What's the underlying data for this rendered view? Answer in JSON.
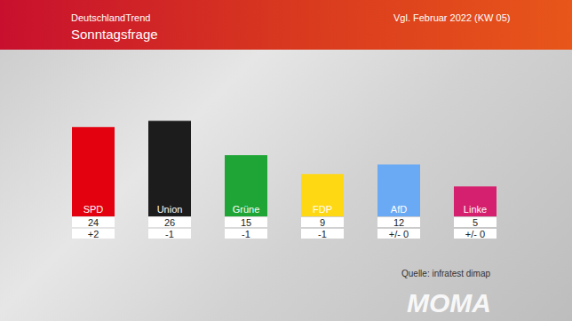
{
  "chart_data": {
    "type": "bar",
    "subtitle": "DeutschlandTrend",
    "title": "Sonntagsfrage",
    "annotations": [
      "Vgl. Februar 2022 (KW 05)",
      "Quelle: infratest dimap",
      "MOMA"
    ],
    "categories": [
      "SPD",
      "Union",
      "Grüne",
      "FDP",
      "AfD",
      "Linke"
    ],
    "values": [
      24,
      26,
      15,
      9,
      12,
      5
    ],
    "changes": [
      2,
      -1,
      -1,
      -1,
      0,
      0
    ],
    "change_labels": [
      "+2",
      "-1",
      "-1",
      "-1",
      "+/- 0",
      "+/- 0"
    ],
    "colors": [
      "#e3000f",
      "#1c1c1c",
      "#1ea535",
      "#ffd814",
      "#6aaaf5",
      "#d4206e"
    ],
    "ylim": [
      0,
      30
    ],
    "grid": false,
    "data_labels": true,
    "tick_labels": "x"
  }
}
